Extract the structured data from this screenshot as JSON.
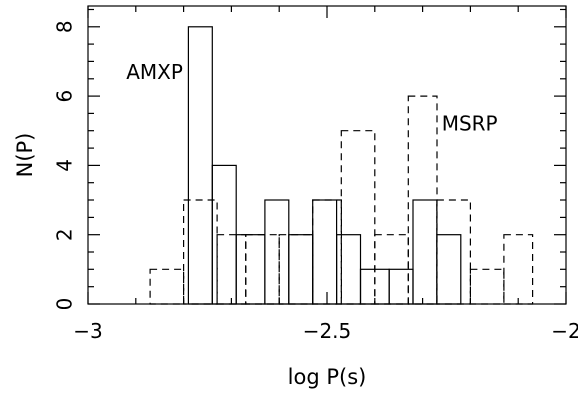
{
  "chart_data": {
    "type": "histogram",
    "title": "",
    "xlabel": "log P(s)",
    "ylabel": "N(P)",
    "xlim": [
      -3,
      -2
    ],
    "ylim": [
      0,
      8.6
    ],
    "xticks": [
      -3,
      -2.5,
      -2
    ],
    "xtick_labels": [
      "−3",
      "−2.5",
      "−2"
    ],
    "yticks": [
      0,
      2,
      4,
      6,
      8
    ],
    "ytick_labels": [
      "0",
      "2",
      "4",
      "6",
      "8"
    ],
    "grid": false,
    "series": [
      {
        "name": "AMXP",
        "style": "solid",
        "color": "#000000",
        "bins": [
          {
            "x0": -2.79,
            "x1": -2.74,
            "count": 8
          },
          {
            "x0": -2.74,
            "x1": -2.69,
            "count": 4
          },
          {
            "x0": -2.69,
            "x1": -2.63,
            "count": 2
          },
          {
            "x0": -2.63,
            "x1": -2.58,
            "count": 3
          },
          {
            "x0": -2.58,
            "x1": -2.53,
            "count": 2
          },
          {
            "x0": -2.53,
            "x1": -2.48,
            "count": 3
          },
          {
            "x0": -2.48,
            "x1": -2.43,
            "count": 2
          },
          {
            "x0": -2.43,
            "x1": -2.37,
            "count": 1
          },
          {
            "x0": -2.37,
            "x1": -2.32,
            "count": 1
          },
          {
            "x0": -2.32,
            "x1": -2.27,
            "count": 3
          },
          {
            "x0": -2.27,
            "x1": -2.22,
            "count": 2
          }
        ]
      },
      {
        "name": "MSRP",
        "style": "dashed",
        "color": "#000000",
        "bins": [
          {
            "x0": -2.87,
            "x1": -2.8,
            "count": 1
          },
          {
            "x0": -2.8,
            "x1": -2.73,
            "count": 3
          },
          {
            "x0": -2.73,
            "x1": -2.67,
            "count": 2
          },
          {
            "x0": -2.67,
            "x1": -2.6,
            "count": 2
          },
          {
            "x0": -2.6,
            "x1": -2.53,
            "count": 2
          },
          {
            "x0": -2.53,
            "x1": -2.47,
            "count": 3
          },
          {
            "x0": -2.47,
            "x1": -2.4,
            "count": 5
          },
          {
            "x0": -2.4,
            "x1": -2.33,
            "count": 2
          },
          {
            "x0": -2.33,
            "x1": -2.27,
            "count": 6
          },
          {
            "x0": -2.27,
            "x1": -2.2,
            "count": 3
          },
          {
            "x0": -2.2,
            "x1": -2.13,
            "count": 1
          },
          {
            "x0": -2.13,
            "x1": -2.07,
            "count": 2
          }
        ]
      }
    ],
    "annotations": [
      {
        "text": "AMXP",
        "series": "AMXP",
        "x": -2.92,
        "y": 6.5
      },
      {
        "text": "MSRP",
        "series": "MSRP",
        "x": -2.26,
        "y": 5.0
      }
    ]
  }
}
